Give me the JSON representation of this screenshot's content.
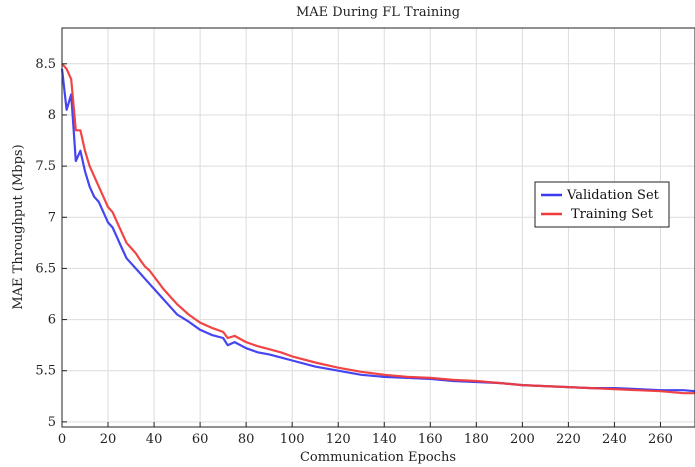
{
  "chart_data": {
    "type": "line",
    "title": "MAE During FL Training",
    "xlabel": "Communication Epochs",
    "ylabel": "MAE Throughput (Mbps)",
    "xlim": [
      0,
      275
    ],
    "ylim": [
      4.95,
      8.85
    ],
    "xticks": [
      0,
      20,
      40,
      60,
      80,
      100,
      120,
      140,
      160,
      180,
      200,
      220,
      240,
      260
    ],
    "yticks": [
      5,
      5.5,
      6,
      6.5,
      7,
      7.5,
      8,
      8.5
    ],
    "ytick_labels": [
      "5",
      "5.5",
      "6",
      "6.5",
      "7",
      "7.5",
      "8",
      "8.5"
    ],
    "grid": true,
    "legend_position": "center-right",
    "series": [
      {
        "name": "Validation Set",
        "color": "#3b3bf0",
        "x": [
          0,
          2,
          4,
          6,
          8,
          10,
          12,
          14,
          16,
          18,
          20,
          22,
          24,
          26,
          28,
          30,
          32,
          34,
          36,
          38,
          40,
          42,
          44,
          46,
          48,
          50,
          55,
          60,
          65,
          70,
          72,
          75,
          80,
          85,
          90,
          95,
          100,
          110,
          120,
          130,
          140,
          150,
          160,
          170,
          180,
          190,
          200,
          210,
          220,
          230,
          240,
          250,
          260,
          270,
          275
        ],
        "y": [
          8.45,
          8.05,
          8.2,
          7.55,
          7.65,
          7.45,
          7.3,
          7.2,
          7.15,
          7.05,
          6.95,
          6.9,
          6.8,
          6.7,
          6.6,
          6.55,
          6.5,
          6.45,
          6.4,
          6.35,
          6.3,
          6.25,
          6.2,
          6.15,
          6.1,
          6.05,
          5.98,
          5.9,
          5.85,
          5.82,
          5.75,
          5.78,
          5.72,
          5.68,
          5.66,
          5.63,
          5.6,
          5.54,
          5.5,
          5.46,
          5.44,
          5.43,
          5.42,
          5.4,
          5.39,
          5.38,
          5.36,
          5.35,
          5.34,
          5.33,
          5.33,
          5.32,
          5.31,
          5.31,
          5.3
        ]
      },
      {
        "name": "Training Set",
        "color": "#f03b3b",
        "x": [
          0,
          2,
          4,
          6,
          8,
          10,
          12,
          14,
          16,
          18,
          20,
          22,
          24,
          26,
          28,
          30,
          32,
          34,
          36,
          38,
          40,
          42,
          44,
          46,
          48,
          50,
          55,
          60,
          65,
          70,
          72,
          75,
          80,
          85,
          90,
          95,
          100,
          110,
          120,
          130,
          140,
          150,
          160,
          170,
          180,
          190,
          200,
          210,
          220,
          230,
          240,
          250,
          260,
          270,
          275
        ],
        "y": [
          8.5,
          8.45,
          8.35,
          7.85,
          7.85,
          7.65,
          7.5,
          7.4,
          7.3,
          7.2,
          7.1,
          7.05,
          6.95,
          6.85,
          6.75,
          6.7,
          6.65,
          6.58,
          6.52,
          6.48,
          6.42,
          6.36,
          6.3,
          6.25,
          6.2,
          6.15,
          6.05,
          5.97,
          5.92,
          5.88,
          5.82,
          5.84,
          5.78,
          5.74,
          5.71,
          5.68,
          5.64,
          5.58,
          5.53,
          5.49,
          5.46,
          5.44,
          5.43,
          5.41,
          5.4,
          5.38,
          5.36,
          5.35,
          5.34,
          5.33,
          5.32,
          5.31,
          5.3,
          5.28,
          5.28
        ]
      }
    ]
  }
}
